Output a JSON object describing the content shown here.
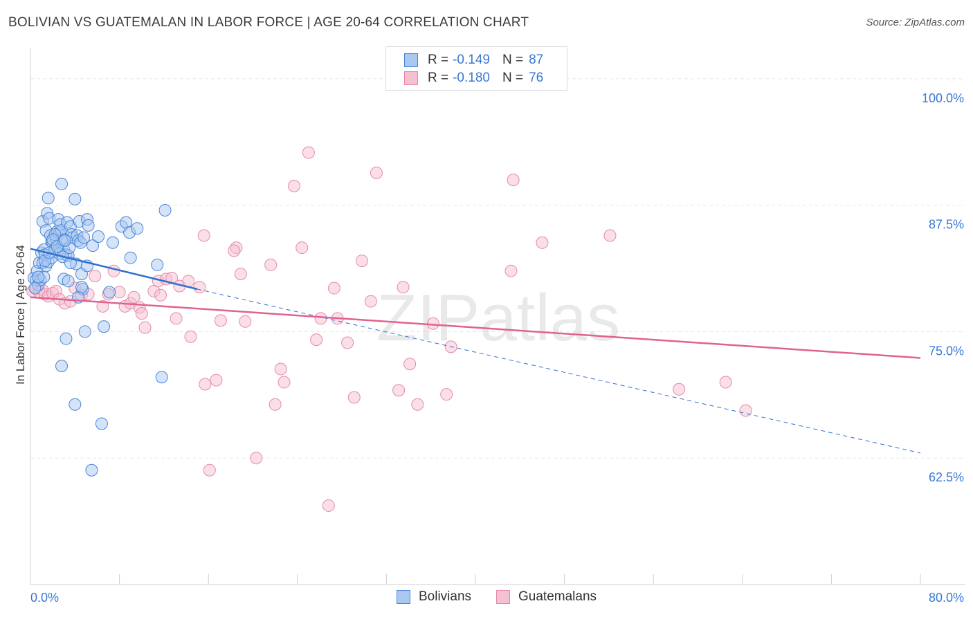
{
  "title": "BOLIVIAN VS GUATEMALAN IN LABOR FORCE | AGE 20-64 CORRELATION CHART",
  "source": "Source: ZipAtlas.com",
  "watermark": "ZIPatlas",
  "legend": {
    "rows": [
      {
        "r_label": "R =",
        "r_value": "-0.149",
        "n_label": "N =",
        "n_value": "87"
      },
      {
        "r_label": "R =",
        "r_value": "-0.180",
        "n_label": "N =",
        "n_value": "76"
      }
    ]
  },
  "colors": {
    "blue_fill": "#a9c8f0",
    "blue_stroke": "#4a86d8",
    "blue_line": "#2f6fd0",
    "pink_fill": "#f5c0d2",
    "pink_stroke": "#e58aa8",
    "pink_line": "#e0628e",
    "tick_label": "#3a78d4",
    "grid": "#e6e6e6"
  },
  "chart_data": {
    "type": "scatter",
    "title": "BOLIVIAN VS GUATEMALAN IN LABOR FORCE | AGE 20-64 CORRELATION CHART",
    "xlabel": "",
    "ylabel": "In Labor Force | Age 20-64",
    "xlim": [
      0,
      80
    ],
    "ylim": [
      50,
      103
    ],
    "x_tick_labels": [
      "0.0%",
      "80.0%"
    ],
    "y_ticks": [
      62.5,
      75.0,
      87.5,
      100.0
    ],
    "y_tick_labels": [
      "62.5%",
      "75.0%",
      "87.5%",
      "100.0%"
    ],
    "grid": true,
    "legend_position": "bottom",
    "series": [
      {
        "name": "Bolivians",
        "r": -0.149,
        "n": 87,
        "trend": {
          "x": [
            0,
            15
          ],
          "y": [
            83.2,
            79.2
          ],
          "extended_x": [
            15,
            80
          ],
          "extended_y": [
            79.2,
            63.0
          ]
        },
        "points": [
          [
            0.3,
            80.3
          ],
          [
            0.5,
            80.1
          ],
          [
            0.6,
            81.0
          ],
          [
            0.7,
            79.6
          ],
          [
            0.8,
            81.8
          ],
          [
            0.9,
            80.1
          ],
          [
            1.0,
            82.8
          ],
          [
            1.1,
            81.8
          ],
          [
            1.2,
            83.1
          ],
          [
            1.3,
            82.6
          ],
          [
            1.1,
            85.9
          ],
          [
            1.4,
            85.0
          ],
          [
            1.5,
            86.7
          ],
          [
            1.6,
            88.2
          ],
          [
            1.7,
            86.2
          ],
          [
            1.8,
            84.5
          ],
          [
            1.9,
            83.9
          ],
          [
            2.0,
            83.8
          ],
          [
            2.1,
            82.9
          ],
          [
            2.2,
            83.2
          ],
          [
            2.3,
            84.2
          ],
          [
            2.4,
            84.9
          ],
          [
            2.5,
            86.1
          ],
          [
            2.6,
            84.7
          ],
          [
            2.7,
            85.6
          ],
          [
            2.8,
            85.0
          ],
          [
            2.9,
            84.0
          ],
          [
            3.0,
            83.1
          ],
          [
            3.1,
            84.1
          ],
          [
            3.2,
            82.6
          ],
          [
            3.3,
            85.8
          ],
          [
            3.4,
            82.5
          ],
          [
            3.5,
            83.3
          ],
          [
            3.6,
            85.4
          ],
          [
            3.7,
            84.6
          ],
          [
            3.8,
            84.3
          ],
          [
            2.8,
            89.6
          ],
          [
            4.0,
            88.1
          ],
          [
            4.1,
            81.7
          ],
          [
            4.2,
            84.5
          ],
          [
            4.3,
            84.0
          ],
          [
            4.4,
            85.9
          ],
          [
            4.5,
            83.8
          ],
          [
            4.6,
            80.7
          ],
          [
            4.7,
            79.2
          ],
          [
            4.8,
            84.3
          ],
          [
            5.1,
            86.1
          ],
          [
            5.2,
            85.5
          ],
          [
            5.6,
            83.5
          ],
          [
            6.1,
            84.4
          ],
          [
            6.6,
            75.5
          ],
          [
            7.1,
            78.9
          ],
          [
            7.4,
            83.8
          ],
          [
            8.2,
            85.4
          ],
          [
            8.6,
            85.8
          ],
          [
            8.9,
            84.8
          ],
          [
            9.0,
            82.3
          ],
          [
            9.6,
            85.2
          ],
          [
            11.4,
            81.6
          ],
          [
            12.1,
            87.0
          ],
          [
            1.2,
            80.4
          ],
          [
            1.4,
            81.5
          ],
          [
            1.6,
            81.9
          ],
          [
            1.9,
            82.3
          ],
          [
            2.2,
            84.6
          ],
          [
            2.6,
            82.7
          ],
          [
            2.9,
            82.4
          ],
          [
            3.0,
            80.2
          ],
          [
            3.2,
            74.3
          ],
          [
            3.4,
            80.0
          ],
          [
            4.0,
            67.8
          ],
          [
            4.3,
            78.4
          ],
          [
            4.9,
            75.0
          ],
          [
            2.8,
            71.6
          ],
          [
            5.1,
            81.5
          ],
          [
            6.4,
            65.9
          ],
          [
            5.5,
            61.3
          ],
          [
            11.8,
            70.5
          ],
          [
            0.4,
            79.3
          ],
          [
            0.7,
            80.4
          ],
          [
            1.3,
            82.0
          ],
          [
            1.7,
            82.8
          ],
          [
            2.0,
            84.1
          ],
          [
            2.4,
            83.4
          ],
          [
            3.1,
            84.0
          ],
          [
            3.6,
            81.8
          ],
          [
            4.6,
            79.4
          ]
        ]
      },
      {
        "name": "Guatemalans",
        "r": -0.18,
        "n": 76,
        "trend": {
          "x": [
            0,
            80
          ],
          "y": [
            78.4,
            72.4
          ]
        },
        "points": [
          [
            0.2,
            79.0
          ],
          [
            0.5,
            79.3
          ],
          [
            0.8,
            78.9
          ],
          [
            1.1,
            79.1
          ],
          [
            1.3,
            78.7
          ],
          [
            1.6,
            78.5
          ],
          [
            2.0,
            78.8
          ],
          [
            2.3,
            79.0
          ],
          [
            2.6,
            78.2
          ],
          [
            3.1,
            77.8
          ],
          [
            3.6,
            78.0
          ],
          [
            4.0,
            79.3
          ],
          [
            4.6,
            78.6
          ],
          [
            5.2,
            78.7
          ],
          [
            5.8,
            80.5
          ],
          [
            6.5,
            77.5
          ],
          [
            7.0,
            78.7
          ],
          [
            7.5,
            81.0
          ],
          [
            8.0,
            78.9
          ],
          [
            8.5,
            77.5
          ],
          [
            9.0,
            77.8
          ],
          [
            9.3,
            78.4
          ],
          [
            9.8,
            77.4
          ],
          [
            10.0,
            76.8
          ],
          [
            10.3,
            75.4
          ],
          [
            11.1,
            79.0
          ],
          [
            11.7,
            78.6
          ],
          [
            11.5,
            80.0
          ],
          [
            12.2,
            80.2
          ],
          [
            12.7,
            80.3
          ],
          [
            13.1,
            76.3
          ],
          [
            13.4,
            79.5
          ],
          [
            14.2,
            80.0
          ],
          [
            14.4,
            74.5
          ],
          [
            15.2,
            79.4
          ],
          [
            15.7,
            69.8
          ],
          [
            16.1,
            61.3
          ],
          [
            16.7,
            70.2
          ],
          [
            17.1,
            76.1
          ],
          [
            18.5,
            83.3
          ],
          [
            18.9,
            80.7
          ],
          [
            19.3,
            76.0
          ],
          [
            20.3,
            62.5
          ],
          [
            21.6,
            81.6
          ],
          [
            22.0,
            67.8
          ],
          [
            22.5,
            71.3
          ],
          [
            22.8,
            70.0
          ],
          [
            23.7,
            89.4
          ],
          [
            24.4,
            83.3
          ],
          [
            25.0,
            92.7
          ],
          [
            25.7,
            74.2
          ],
          [
            26.1,
            76.3
          ],
          [
            26.8,
            57.8
          ],
          [
            27.3,
            79.3
          ],
          [
            27.6,
            76.3
          ],
          [
            28.5,
            73.9
          ],
          [
            29.1,
            68.5
          ],
          [
            29.8,
            82.0
          ],
          [
            30.6,
            78.0
          ],
          [
            31.1,
            90.7
          ],
          [
            33.1,
            69.2
          ],
          [
            33.5,
            79.4
          ],
          [
            34.1,
            71.8
          ],
          [
            34.8,
            67.8
          ],
          [
            36.2,
            75.8
          ],
          [
            37.4,
            68.8
          ],
          [
            37.8,
            73.5
          ],
          [
            43.2,
            81.0
          ],
          [
            43.4,
            90.0
          ],
          [
            46.0,
            83.8
          ],
          [
            52.1,
            84.5
          ],
          [
            58.3,
            69.3
          ],
          [
            62.5,
            70.0
          ],
          [
            64.3,
            67.2
          ],
          [
            15.6,
            84.5
          ],
          [
            18.3,
            83.0
          ]
        ]
      }
    ]
  },
  "bottom_legend": [
    {
      "label": "Bolivians"
    },
    {
      "label": "Guatemalans"
    }
  ]
}
